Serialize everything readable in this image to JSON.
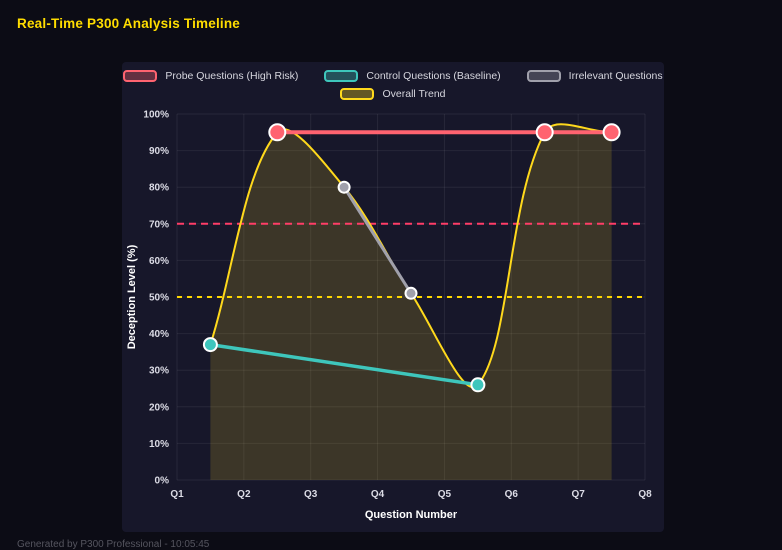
{
  "page": {
    "footer": "Generated by P300 Professional - 10:05:45"
  },
  "chart_data": {
    "type": "line",
    "title": "Real-Time P300 Analysis Timeline",
    "xlabel": "Question Number",
    "ylabel": "Deception Level (%)",
    "x_axis": {
      "min": 1,
      "max": 8,
      "tick_values": [
        1,
        2,
        3,
        4,
        5,
        6,
        7,
        8
      ],
      "ticks": [
        "Q1",
        "Q2",
        "Q3",
        "Q4",
        "Q5",
        "Q6",
        "Q7",
        "Q8"
      ]
    },
    "y_axis": {
      "min": 0,
      "max": 100,
      "tick_step": 10,
      "ticks": [
        "0%",
        "10%",
        "20%",
        "30%",
        "40%",
        "50%",
        "60%",
        "70%",
        "80%",
        "90%",
        "100%"
      ]
    },
    "grid": true,
    "legend_position": "top",
    "legend_rows": [
      [
        "probe",
        "control",
        "irrelevant"
      ],
      [
        "trend"
      ]
    ],
    "series": [
      {
        "name": "probe",
        "label": "Probe Questions (High Risk)",
        "color": "#ff6370",
        "line_width": 4,
        "marker_radius": 8,
        "curve": false,
        "fill": false,
        "z": 3,
        "points": [
          {
            "x": 2.5,
            "y": 95
          },
          {
            "x": 6.5,
            "y": 95
          },
          {
            "x": 7.5,
            "y": 95
          }
        ]
      },
      {
        "name": "control",
        "label": "Control Questions (Baseline)",
        "color": "#3ec6bc",
        "line_width": 3.5,
        "marker_radius": 6.5,
        "curve": false,
        "fill": false,
        "z": 2,
        "points": [
          {
            "x": 1.5,
            "y": 37
          },
          {
            "x": 5.5,
            "y": 26
          }
        ]
      },
      {
        "name": "irrelevant",
        "label": "Irrelevant Questions",
        "color": "#a0a0ab",
        "line_width": 3,
        "marker_radius": 5.5,
        "curve": false,
        "fill": false,
        "z": 1,
        "points": [
          {
            "x": 3.5,
            "y": 80
          },
          {
            "x": 4.5,
            "y": 51
          }
        ]
      },
      {
        "name": "trend",
        "label": "Overall Trend",
        "color": "#ffd91c",
        "line_width": 2,
        "marker_radius": 0,
        "curve": true,
        "tension": 0.35,
        "fill": true,
        "fill_opacity": 0.16,
        "z": 0,
        "points": [
          {
            "x": 1.5,
            "y": 37
          },
          {
            "x": 2.5,
            "y": 95
          },
          {
            "x": 3.5,
            "y": 80
          },
          {
            "x": 4.5,
            "y": 51
          },
          {
            "x": 5.5,
            "y": 26
          },
          {
            "x": 6.5,
            "y": 95
          },
          {
            "x": 7.5,
            "y": 95
          }
        ]
      }
    ],
    "thresholds": [
      {
        "value": 70,
        "color": "#ff3d67",
        "dash": [
          7,
          5
        ]
      },
      {
        "value": 50,
        "color": "#ffd700",
        "dash": [
          5,
          5
        ]
      }
    ]
  }
}
